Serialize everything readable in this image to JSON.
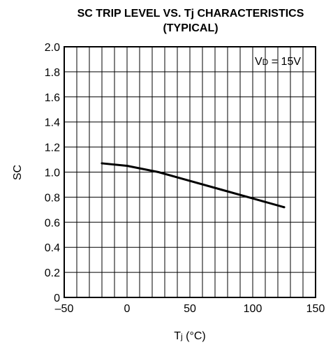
{
  "chart_data": {
    "type": "line",
    "title": "SC TRIP LEVEL VS. Tj CHARACTERISTICS",
    "subtitle": "(TYPICAL)",
    "xlabel": "Tj (°C)",
    "ylabel": "SC",
    "xlim": [
      -50,
      150
    ],
    "ylim": [
      0,
      2.0
    ],
    "xticks": [
      -50,
      0,
      50,
      100,
      150
    ],
    "xtick_labels": [
      "–50",
      "0",
      "50",
      "100",
      "150"
    ],
    "yticks": [
      0,
      0.2,
      0.4,
      0.6,
      0.8,
      1.0,
      1.2,
      1.4,
      1.6,
      1.8,
      2.0
    ],
    "ytick_labels": [
      "0",
      "0.2",
      "0.4",
      "0.6",
      "0.8",
      "1.0",
      "1.2",
      "1.4",
      "1.6",
      "1.8",
      "2.0"
    ],
    "grid": true,
    "annotation": "VD = 15V",
    "series": [
      {
        "x": [
          -20,
          0,
          25,
          50,
          75,
          100,
          125
        ],
        "y": [
          1.07,
          1.05,
          1.0,
          0.93,
          0.86,
          0.79,
          0.72
        ]
      }
    ]
  }
}
